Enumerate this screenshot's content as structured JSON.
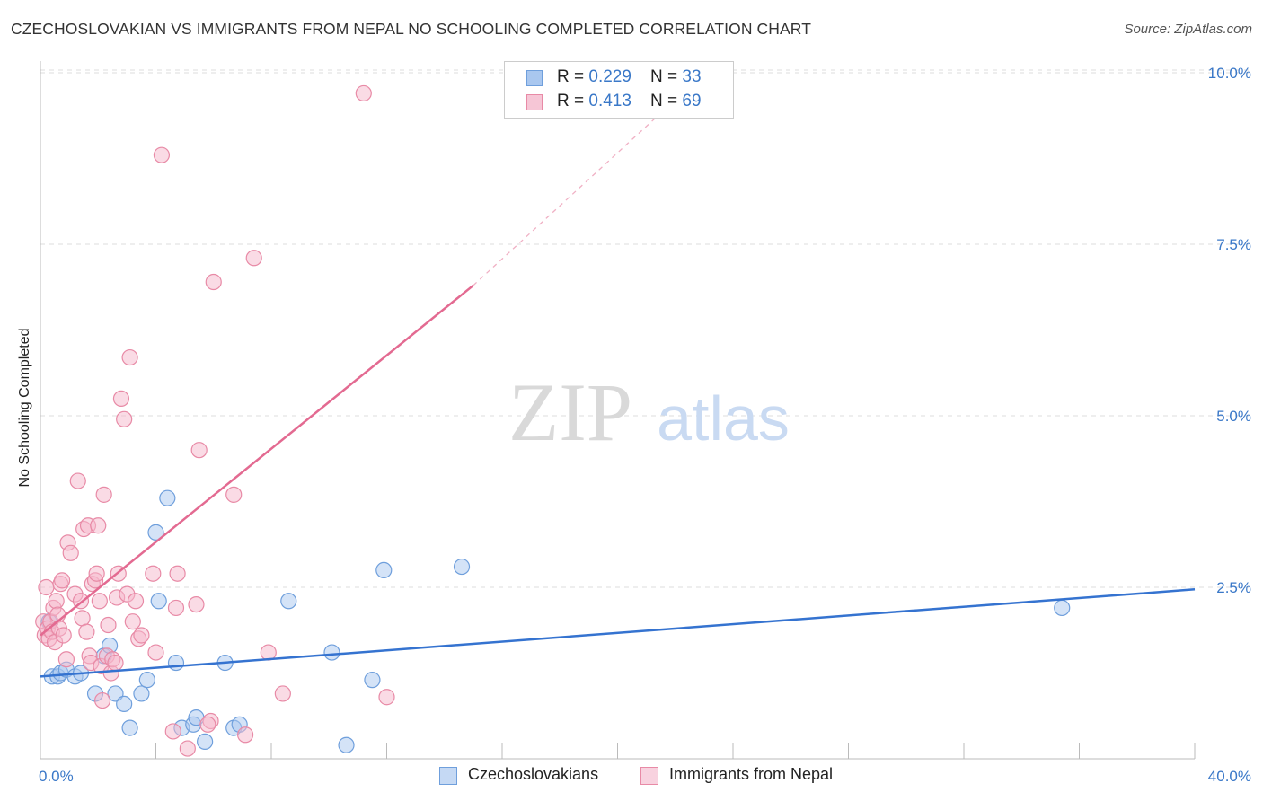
{
  "title": "CZECHOSLOVAKIAN VS IMMIGRANTS FROM NEPAL NO SCHOOLING COMPLETED CORRELATION CHART",
  "source": "Source: ZipAtlas.com",
  "watermark": {
    "zip": "ZIP",
    "atlas": "atlas"
  },
  "colors": {
    "blue_fill": "#a9c7ef",
    "blue_stroke": "#6f9fdc",
    "blue_line": "#3573d0",
    "pink_fill": "#f6b8cb",
    "pink_stroke": "#e88aa6",
    "pink_line": "#e36a91",
    "axis_text": "#3a78c8",
    "grid": "#dddddd"
  },
  "legend": {
    "rows": [
      {
        "r_label": "R = ",
        "r_value": "0.229",
        "n_label": "N = ",
        "n_value": "33"
      },
      {
        "r_label": "R = ",
        "r_value": "0.413",
        "n_label": "N = ",
        "n_value": "69"
      }
    ]
  },
  "bottom_legend": [
    "Czechoslovakians",
    "Immigrants from Nepal"
  ],
  "chart_data": {
    "type": "scatter",
    "title": "CZECHOSLOVAKIAN VS IMMIGRANTS FROM NEPAL NO SCHOOLING COMPLETED CORRELATION CHART",
    "xlabel": "",
    "ylabel": "No Schooling Completed",
    "xlim": [
      0,
      40
    ],
    "ylim": [
      0,
      10.5
    ],
    "x_tick_labels": [
      "0.0%",
      "40.0%"
    ],
    "y_ticks": [
      2.5,
      5.0,
      7.5,
      10.0
    ],
    "y_tick_labels": [
      "2.5%",
      "5.0%",
      "7.5%",
      "10.0%"
    ],
    "series": [
      {
        "name": "Czechoslovakians",
        "color": "blue",
        "r": 0.229,
        "n": 33,
        "trend": {
          "x0": 0,
          "y0": 1.2,
          "x1": 40,
          "y1": 2.47
        },
        "points": [
          [
            0.3,
            2.0
          ],
          [
            0.4,
            1.2
          ],
          [
            0.6,
            1.2
          ],
          [
            0.7,
            1.25
          ],
          [
            0.9,
            1.3
          ],
          [
            1.2,
            1.2
          ],
          [
            1.4,
            1.25
          ],
          [
            1.9,
            0.95
          ],
          [
            2.2,
            1.5
          ],
          [
            2.4,
            1.65
          ],
          [
            2.6,
            0.95
          ],
          [
            2.9,
            0.8
          ],
          [
            3.1,
            0.45
          ],
          [
            3.5,
            0.95
          ],
          [
            3.7,
            1.15
          ],
          [
            4.0,
            3.3
          ],
          [
            4.1,
            2.3
          ],
          [
            4.4,
            3.8
          ],
          [
            4.7,
            1.4
          ],
          [
            4.9,
            0.45
          ],
          [
            5.3,
            0.5
          ],
          [
            5.4,
            0.6
          ],
          [
            5.7,
            0.25
          ],
          [
            6.4,
            1.4
          ],
          [
            6.7,
            0.45
          ],
          [
            6.9,
            0.5
          ],
          [
            8.6,
            2.3
          ],
          [
            10.1,
            1.55
          ],
          [
            10.6,
            0.2
          ],
          [
            11.5,
            1.15
          ],
          [
            11.9,
            2.75
          ],
          [
            14.6,
            2.8
          ],
          [
            35.4,
            2.2
          ]
        ]
      },
      {
        "name": "Immigrants from Nepal",
        "color": "pink",
        "r": 0.413,
        "n": 69,
        "trend": {
          "x0": 0,
          "y0": 1.8,
          "x1": 15,
          "y1": 6.9,
          "dash_x1": 22.5,
          "dash_y1": 9.8
        },
        "points": [
          [
            0.1,
            2.0
          ],
          [
            0.15,
            1.8
          ],
          [
            0.2,
            2.5
          ],
          [
            0.25,
            1.9
          ],
          [
            0.3,
            1.75
          ],
          [
            0.35,
            2.0
          ],
          [
            0.4,
            1.85
          ],
          [
            0.45,
            2.2
          ],
          [
            0.5,
            1.7
          ],
          [
            0.55,
            2.3
          ],
          [
            0.6,
            2.1
          ],
          [
            0.65,
            1.9
          ],
          [
            0.7,
            2.55
          ],
          [
            0.75,
            2.6
          ],
          [
            0.8,
            1.8
          ],
          [
            0.9,
            1.45
          ],
          [
            0.95,
            3.15
          ],
          [
            1.05,
            3.0
          ],
          [
            1.2,
            2.4
          ],
          [
            1.3,
            4.05
          ],
          [
            1.4,
            2.3
          ],
          [
            1.45,
            2.05
          ],
          [
            1.5,
            3.35
          ],
          [
            1.6,
            1.85
          ],
          [
            1.65,
            3.4
          ],
          [
            1.7,
            1.5
          ],
          [
            1.75,
            1.4
          ],
          [
            1.8,
            2.55
          ],
          [
            1.9,
            2.6
          ],
          [
            1.95,
            2.7
          ],
          [
            2.0,
            3.4
          ],
          [
            2.05,
            2.3
          ],
          [
            2.1,
            1.35
          ],
          [
            2.15,
            0.85
          ],
          [
            2.2,
            3.85
          ],
          [
            2.3,
            1.5
          ],
          [
            2.35,
            1.95
          ],
          [
            2.45,
            1.25
          ],
          [
            2.5,
            1.45
          ],
          [
            2.6,
            1.4
          ],
          [
            2.65,
            2.35
          ],
          [
            2.7,
            2.7
          ],
          [
            2.8,
            5.25
          ],
          [
            2.9,
            4.95
          ],
          [
            3.0,
            2.4
          ],
          [
            3.1,
            5.85
          ],
          [
            3.2,
            2.0
          ],
          [
            3.3,
            2.3
          ],
          [
            3.4,
            1.75
          ],
          [
            3.9,
            2.7
          ],
          [
            4.0,
            1.55
          ],
          [
            4.2,
            8.8
          ],
          [
            4.6,
            0.4
          ],
          [
            4.7,
            2.2
          ],
          [
            4.75,
            2.7
          ],
          [
            5.1,
            0.15
          ],
          [
            5.4,
            2.25
          ],
          [
            5.5,
            4.5
          ],
          [
            5.9,
            0.55
          ],
          [
            6.0,
            6.95
          ],
          [
            6.7,
            3.85
          ],
          [
            7.1,
            0.35
          ],
          [
            7.4,
            7.3
          ],
          [
            7.9,
            1.55
          ],
          [
            8.4,
            0.95
          ],
          [
            11.2,
            9.7
          ],
          [
            12.0,
            0.9
          ],
          [
            5.8,
            0.5
          ],
          [
            3.5,
            1.8
          ]
        ]
      }
    ],
    "grid": true
  }
}
